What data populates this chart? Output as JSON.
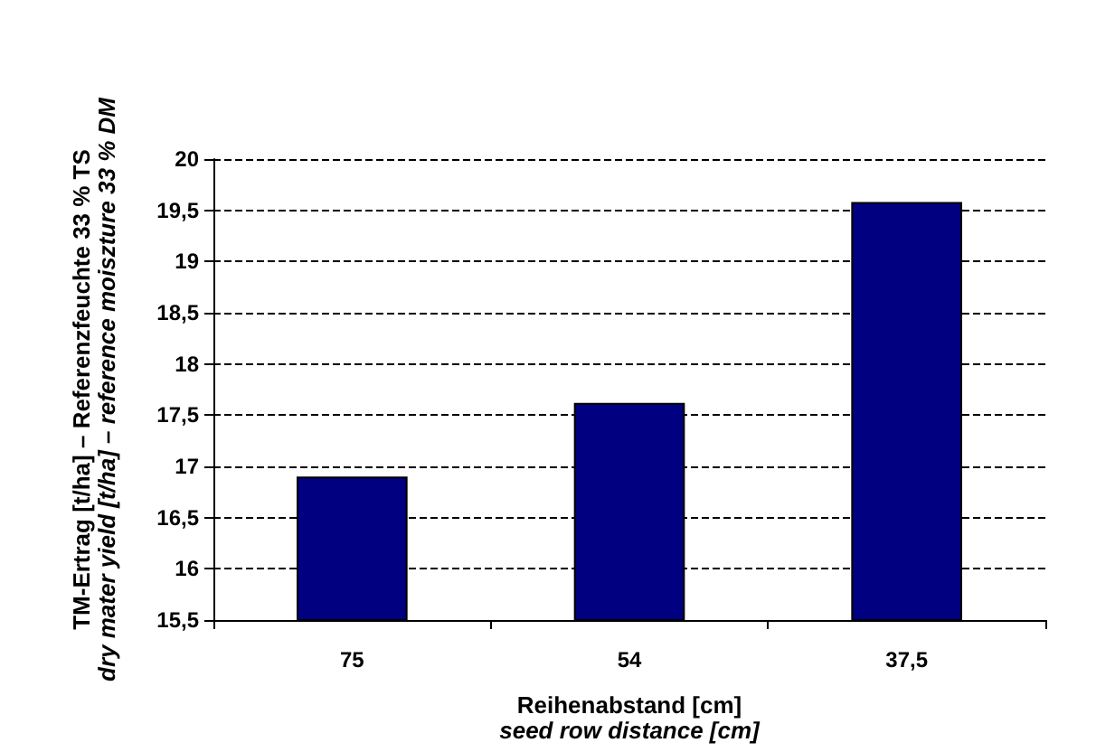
{
  "chart_data": {
    "type": "bar",
    "categories": [
      "75",
      "54",
      "37,5"
    ],
    "values": [
      16.9,
      17.62,
      19.58
    ],
    "color": "#000080",
    "xlabel": "Reihenabstand [cm]\nseed row distance [cm]",
    "ylabel": "TM-Ertrag [t/ha] – Referenzfeuchte 33 % TS\ndry mater yield [t/ha] – reference moiszture 33 % DM",
    "ylim": [
      15.5,
      20
    ],
    "yticks": [
      {
        "value": 15.5,
        "label": "15,5"
      },
      16,
      {
        "value": 16.5,
        "label": "16,5"
      },
      17,
      {
        "value": 17.5,
        "label": "17,5"
      },
      18,
      {
        "value": 18.5,
        "label": "18,5"
      },
      19,
      {
        "value": 19.5,
        "label": "19,5"
      },
      20
    ],
    "grid": "y"
  }
}
